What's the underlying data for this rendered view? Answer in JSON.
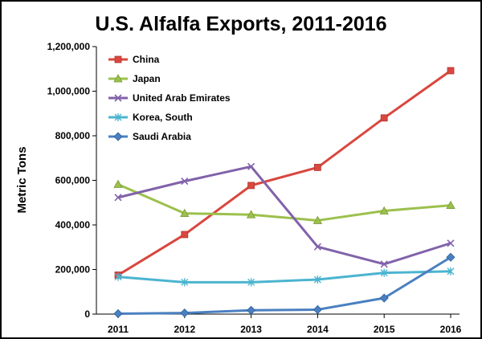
{
  "chart_data": {
    "type": "line",
    "title": "U.S. Alfalfa Exports, 2011-2016",
    "ylabel": "Metric Tons",
    "xlabel": "",
    "categories": [
      "2011",
      "2012",
      "2013",
      "2014",
      "2015",
      "2016"
    ],
    "ylim": [
      0,
      1200000
    ],
    "yticks": [
      "0",
      "200,000",
      "400,000",
      "600,000",
      "800,000",
      "1,000,000",
      "1,200,000"
    ],
    "grid": false,
    "legend": "top-left",
    "series": [
      {
        "name": "China",
        "color": "#d9473f",
        "marker": "square",
        "values": [
          175000,
          357000,
          577000,
          658000,
          880000,
          1092000
        ]
      },
      {
        "name": "Japan",
        "color": "#9cc04d",
        "marker": "triangle",
        "values": [
          582000,
          452000,
          446000,
          420000,
          463000,
          488000
        ]
      },
      {
        "name": "United Arab Emirates",
        "color": "#8162aa",
        "marker": "x",
        "values": [
          523000,
          596000,
          662000,
          302000,
          224000,
          318000
        ]
      },
      {
        "name": "Korea, South",
        "color": "#4bb4cf",
        "marker": "star",
        "values": [
          167000,
          143000,
          143000,
          155000,
          185000,
          192000
        ]
      },
      {
        "name": "Saudi Arabia",
        "color": "#4a80c1",
        "marker": "diamond",
        "values": [
          2000,
          5000,
          17000,
          20000,
          72000,
          255000
        ]
      }
    ]
  }
}
